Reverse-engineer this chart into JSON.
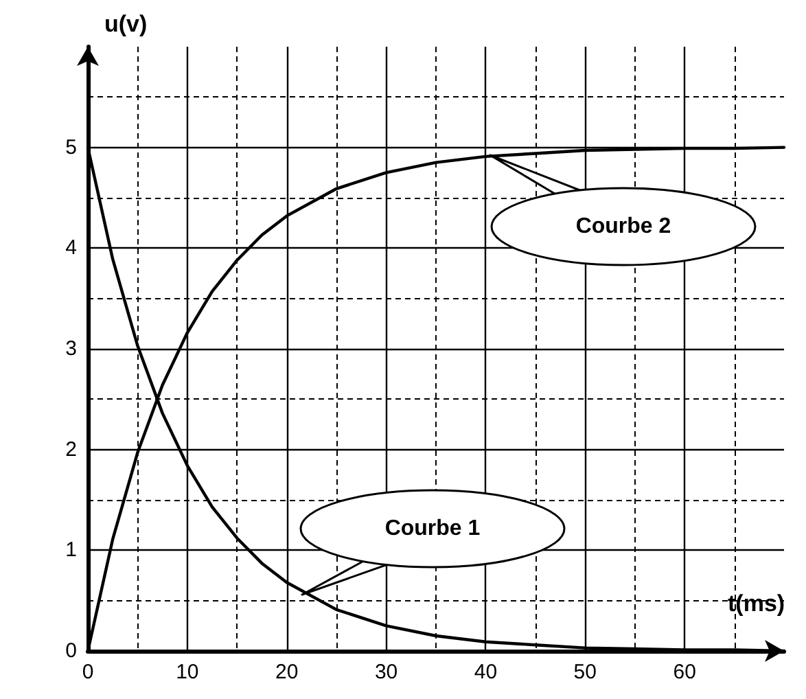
{
  "chart_data": {
    "type": "line",
    "xlabel": "t(ms)",
    "ylabel": "u(v)",
    "x": [
      0,
      2.5,
      5,
      7.5,
      10,
      12.5,
      15,
      17.5,
      20,
      25,
      30,
      35,
      40,
      45,
      50,
      55,
      60,
      65,
      70
    ],
    "series": [
      {
        "color": "#000000",
        "values": [
          5,
          3.89,
          3.03,
          2.36,
          1.84,
          1.43,
          1.12,
          0.87,
          0.68,
          0.41,
          0.25,
          0.15,
          0.09,
          0.06,
          0.03,
          0.02,
          0.01,
          0.01,
          0
        ]
      },
      {
        "color": "#000000",
        "values": [
          0,
          1.11,
          1.97,
          2.64,
          3.16,
          3.57,
          3.88,
          4.13,
          4.32,
          4.59,
          4.75,
          4.85,
          4.91,
          4.94,
          4.97,
          4.98,
          4.99,
          4.99,
          5
        ]
      }
    ],
    "xlim": [
      0,
      70
    ],
    "ylim": [
      0,
      6
    ],
    "xticks": [
      0,
      10,
      20,
      30,
      40,
      50,
      60
    ],
    "yticks": [
      0,
      1,
      2,
      3,
      4,
      5
    ],
    "grid": true,
    "marker": "none",
    "line_style": "solid",
    "annotations": [
      "Courbe 1",
      "Courbe 2"
    ]
  }
}
